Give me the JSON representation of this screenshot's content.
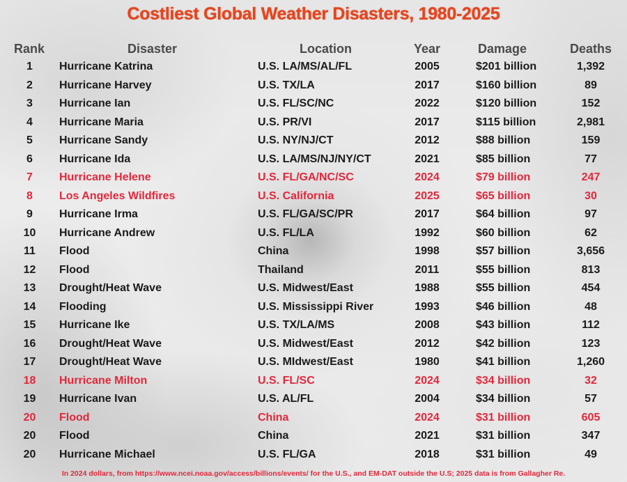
{
  "title": "Costliest Global Weather Disasters, 1980-2025",
  "columns": {
    "rank": "Rank",
    "disaster": "Disaster",
    "location": "Location",
    "year": "Year",
    "damage": "Damage",
    "deaths": "Deaths"
  },
  "colors": {
    "title": "#e8441c",
    "highlight": "#e0283c",
    "text": "#1a1a1a",
    "header": "#4a4a4a"
  },
  "rows": [
    {
      "rank": "1",
      "disaster": "Hurricane Katrina",
      "location": "U.S. LA/MS/AL/FL",
      "year": "2005",
      "damage": "$201 billion",
      "deaths": "1,392",
      "highlight": false
    },
    {
      "rank": "2",
      "disaster": "Hurricane Harvey",
      "location": "U.S. TX/LA",
      "year": "2017",
      "damage": "$160 billion",
      "deaths": "89",
      "highlight": false
    },
    {
      "rank": "3",
      "disaster": "Hurricane Ian",
      "location": "U.S. FL/SC/NC",
      "year": "2022",
      "damage": "$120 billion",
      "deaths": "152",
      "highlight": false
    },
    {
      "rank": "4",
      "disaster": "Hurricane Maria",
      "location": "U.S. PR/VI",
      "year": "2017",
      "damage": "$115 billion",
      "deaths": "2,981",
      "highlight": false
    },
    {
      "rank": "5",
      "disaster": "Hurricane Sandy",
      "location": "U.S. NY/NJ/CT",
      "year": "2012",
      "damage": "$88 billion",
      "deaths": "159",
      "highlight": false
    },
    {
      "rank": "6",
      "disaster": "Hurricane Ida",
      "location": "U.S. LA/MS/NJ/NY/CT",
      "year": "2021",
      "damage": "$85 billion",
      "deaths": "77",
      "highlight": false
    },
    {
      "rank": "7",
      "disaster": "Hurricane Helene",
      "location": "U.S. FL/GA/NC/SC",
      "year": "2024",
      "damage": "$79 billion",
      "deaths": "247",
      "highlight": true
    },
    {
      "rank": "8",
      "disaster": "Los Angeles Wildfires",
      "location": "U.S. California",
      "year": "2025",
      "damage": "$65 billion",
      "deaths": "30",
      "highlight": true
    },
    {
      "rank": "9",
      "disaster": "Hurricane Irma",
      "location": "U.S. FL/GA/SC/PR",
      "year": "2017",
      "damage": "$64 billion",
      "deaths": "97",
      "highlight": false
    },
    {
      "rank": "10",
      "disaster": "Hurricane Andrew",
      "location": "U.S. FL/LA",
      "year": "1992",
      "damage": "$60 billion",
      "deaths": "62",
      "highlight": false
    },
    {
      "rank": "11",
      "disaster": "Flood",
      "location": "China",
      "year": "1998",
      "damage": "$57 billion",
      "deaths": "3,656",
      "highlight": false
    },
    {
      "rank": "12",
      "disaster": "Flood",
      "location": "Thailand",
      "year": "2011",
      "damage": "$55 billion",
      "deaths": "813",
      "highlight": false
    },
    {
      "rank": "13",
      "disaster": "Drought/Heat Wave",
      "location": "U.S. Midwest/East",
      "year": "1988",
      "damage": "$55 billion",
      "deaths": "454",
      "highlight": false
    },
    {
      "rank": "14",
      "disaster": "Flooding",
      "location": "U.S. Mississippi River",
      "year": "1993",
      "damage": "$46 billion",
      "deaths": "48",
      "highlight": false
    },
    {
      "rank": "15",
      "disaster": "Hurricane Ike",
      "location": "U.S. TX/LA/MS",
      "year": "2008",
      "damage": "$43 billion",
      "deaths": "112",
      "highlight": false
    },
    {
      "rank": "16",
      "disaster": "Drought/Heat Wave",
      "location": "U.S. Midwest/East",
      "year": "2012",
      "damage": "$42 billion",
      "deaths": "123",
      "highlight": false
    },
    {
      "rank": "17",
      "disaster": "Drought/Heat Wave",
      "location": "U.S. MIdwest/East",
      "year": "1980",
      "damage": "$41 billion",
      "deaths": "1,260",
      "highlight": false
    },
    {
      "rank": "18",
      "disaster": "Hurricane Milton",
      "location": "U.S. FL/SC",
      "year": "2024",
      "damage": "$34 billion",
      "deaths": "32",
      "highlight": true
    },
    {
      "rank": "19",
      "disaster": "Hurricane Ivan",
      "location": "U.S. AL/FL",
      "year": "2004",
      "damage": "$34 billion",
      "deaths": "57",
      "highlight": false
    },
    {
      "rank": "20",
      "disaster": "Flood",
      "location": "China",
      "year": "2024",
      "damage": "$31 billion",
      "deaths": "605",
      "highlight": true
    },
    {
      "rank": "20",
      "disaster": "Flood",
      "location": "China",
      "year": "2021",
      "damage": "$31 billion",
      "deaths": "347",
      "highlight": false
    },
    {
      "rank": "20",
      "disaster": "Hurricane Michael",
      "location": "U.S. FL/GA",
      "year": "2018",
      "damage": "$31 billion",
      "deaths": "49",
      "highlight": false
    }
  ],
  "footer": "In 2024 dollars, from https://www.ncei.noaa.gov/access/billions/events/ for the U.S., and EM-DAT outside the U.S; 2025 data is from Gallagher Re."
}
